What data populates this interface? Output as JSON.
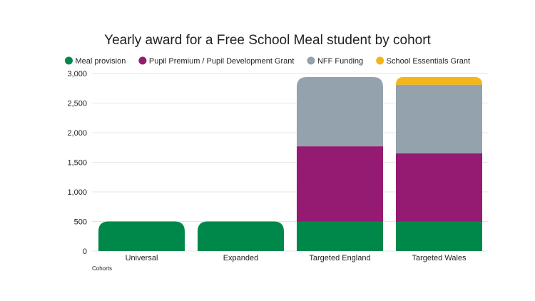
{
  "chart_data": {
    "type": "bar",
    "stacked": true,
    "title": "Yearly award for a Free School Meal student by cohort",
    "xlabel": "Cohorts",
    "ylabel": "",
    "ylim": [
      0,
      3000
    ],
    "yticks": [
      0,
      500,
      1000,
      1500,
      2000,
      2500,
      3000
    ],
    "ytick_labels": [
      "0",
      "500",
      "1,000",
      "1,500",
      "2,000",
      "2,500",
      "3,000"
    ],
    "grid": true,
    "legend_position": "top",
    "categories": [
      "Universal",
      "Expanded",
      "Targeted England",
      "Targeted Wales"
    ],
    "series": [
      {
        "name": "Meal provision",
        "color": "#00884a",
        "values": [
          500,
          500,
          500,
          500
        ]
      },
      {
        "name": "Pupil Premium / Pupil Development Grant",
        "color": "#951b72",
        "values": [
          0,
          0,
          1270,
          1150
        ]
      },
      {
        "name": "NFF Funding",
        "color": "#94a2ad",
        "values": [
          0,
          0,
          1170,
          1160
        ]
      },
      {
        "name": "School Essentials Grant",
        "color": "#f2b619",
        "values": [
          0,
          0,
          0,
          130
        ]
      }
    ]
  }
}
